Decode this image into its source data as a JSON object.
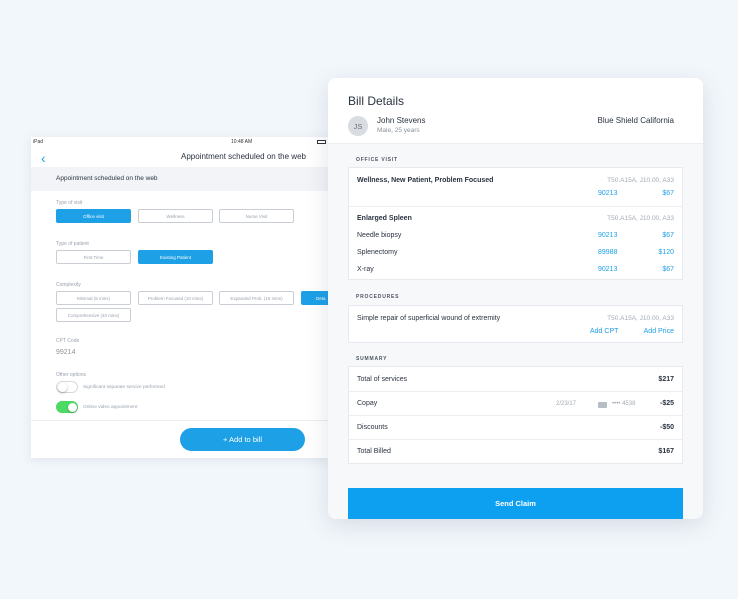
{
  "ipad": {
    "status_carrier": "iPad",
    "status_time": "10:48 AM",
    "nav_title": "Appointment scheduled on the web",
    "subhead": "Appointment scheduled on the web",
    "type_of_visit_label": "Type of visit",
    "visit_options": [
      "Office visit",
      "Wellness",
      "Nurse Visit"
    ],
    "type_of_patient_label": "Type of patient",
    "patient_options": [
      "First Time",
      "Existing Patient"
    ],
    "complexity_label": "Complexity",
    "complexity_options": [
      "Minimal (5 mins)",
      "Problem Focused (10 mins)",
      "Expanded Prob. (15 mins)",
      "Deta",
      "Comprehensive (40 mins)"
    ],
    "cpt_label": "CPT Code",
    "cpt_value": "99214",
    "other_options_label": "Other options",
    "toggle_1_label": "Significant separate service performed",
    "toggle_2_label": "Online video appointment",
    "add_button": "+ Add to bill"
  },
  "bill": {
    "title": "Bill Details",
    "avatar_initials": "JS",
    "patient_name": "John Stevens",
    "patient_meta": "Male, 25 years",
    "insurer": "Blue Shield California",
    "office_visit_label": "OFFICE VISIT",
    "visit_1": {
      "title": "Wellness, New Patient, Problem Focused",
      "codes": "T50.A15A, J10.00, A33",
      "cpt": "90213",
      "price": "$67"
    },
    "visit_2": {
      "title": "Enlarged Spleen",
      "codes": "T50.A15A, J10.00, A33",
      "items": [
        {
          "name": "Needle biopsy",
          "cpt": "90213",
          "price": "$67"
        },
        {
          "name": "Splenectomy",
          "cpt": "89988",
          "price": "$120"
        },
        {
          "name": "X-ray",
          "cpt": "90213",
          "price": "$67"
        }
      ]
    },
    "procedures_label": "PROCEDURES",
    "procedure": {
      "title": "Simple repair of superficial wound of extremity",
      "codes": "T50.A15A, J10.00, A33",
      "add_cpt": "Add CPT",
      "add_price": "Add Price"
    },
    "summary_label": "SUMMARY",
    "summary": {
      "total_services_label": "Total of services",
      "total_services": "$217",
      "copay_label": "Copay",
      "copay_date": "2/23/17",
      "copay_card": "•••• 4538",
      "copay_value": "-$25",
      "discounts_label": "Discounts",
      "discounts_value": "-$50",
      "total_billed_label": "Total Billed",
      "total_billed_value": "$167"
    },
    "send_button": "Send Claim"
  },
  "colors": {
    "accent": "#1ea0e6",
    "send": "#0ea0f0",
    "toggle_on": "#4cd964"
  }
}
